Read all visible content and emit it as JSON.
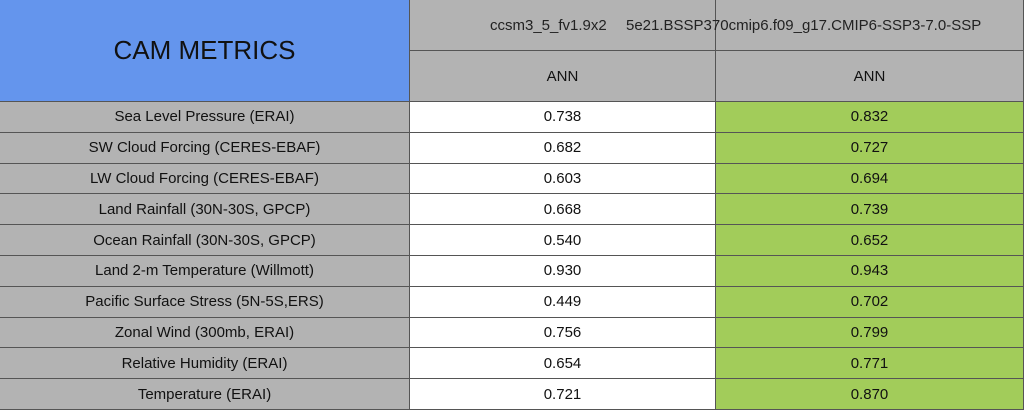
{
  "header": {
    "title": "CAM METRICS",
    "columns": [
      "ccsm3_5_fv1.9x2",
      "5e21.BSSP370cmip6.f09_g17.CMIP6-SSP3-7.0-SSP"
    ],
    "periods": [
      "ANN",
      "ANN"
    ]
  },
  "rows": [
    {
      "label": "Sea Level Pressure (ERAI)",
      "values": [
        "0.738",
        "0.832"
      ]
    },
    {
      "label": "SW Cloud Forcing (CERES-EBAF)",
      "values": [
        "0.682",
        "0.727"
      ]
    },
    {
      "label": "LW Cloud Forcing (CERES-EBAF)",
      "values": [
        "0.603",
        "0.694"
      ]
    },
    {
      "label": "Land Rainfall (30N-30S, GPCP)",
      "values": [
        "0.668",
        "0.739"
      ]
    },
    {
      "label": "Ocean Rainfall (30N-30S, GPCP)",
      "values": [
        "0.540",
        "0.652"
      ]
    },
    {
      "label": "Land 2-m Temperature (Willmott)",
      "values": [
        "0.930",
        "0.943"
      ]
    },
    {
      "label": "Pacific Surface Stress (5N-5S,ERS)",
      "values": [
        "0.449",
        "0.702"
      ]
    },
    {
      "label": "Zonal Wind (300mb, ERAI)",
      "values": [
        "0.756",
        "0.799"
      ]
    },
    {
      "label": "Relative Humidity (ERAI)",
      "values": [
        "0.654",
        "0.771"
      ]
    },
    {
      "label": "Temperature (ERAI)",
      "values": [
        "0.721",
        "0.870"
      ]
    }
  ]
}
